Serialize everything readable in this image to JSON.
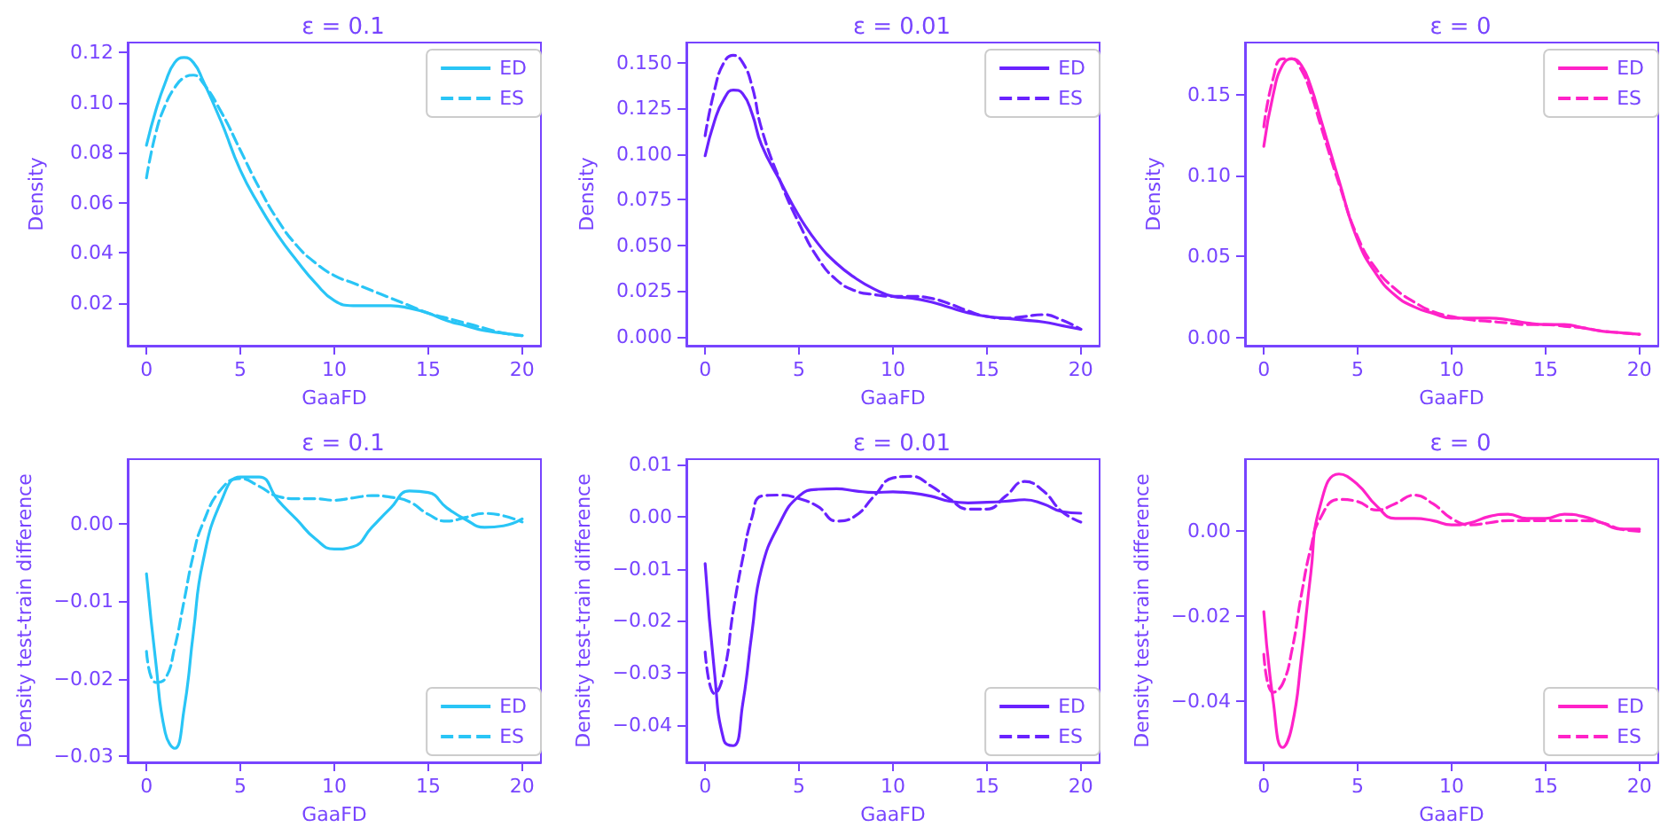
{
  "chart_data": [
    {
      "type": "line",
      "title": "ε = 0.1",
      "xlabel": "GaaFD",
      "ylabel": "Density",
      "x": [
        0,
        0.5,
        1,
        1.5,
        2,
        2.5,
        3,
        4,
        5,
        6,
        7,
        8,
        9,
        10,
        11,
        12,
        13,
        14,
        15,
        16,
        17,
        18,
        19,
        20
      ],
      "xlim": [
        -1,
        21
      ],
      "xticks": [
        0,
        5,
        10,
        15,
        20
      ],
      "ylim": [
        0.003,
        0.124
      ],
      "yticks": [
        {
          "value": 0.02,
          "label": "0.02"
        },
        {
          "value": 0.04,
          "label": "0.04"
        },
        {
          "value": 0.06,
          "label": "0.06"
        },
        {
          "value": 0.08,
          "label": "0.08"
        },
        {
          "value": 0.1,
          "label": "0.10"
        },
        {
          "value": 0.12,
          "label": "0.12"
        }
      ],
      "legend": "top right",
      "grid": false,
      "marker": "none",
      "series": [
        {
          "name": "ED",
          "color": "#29c5f6",
          "line_style": "solid",
          "values": [
            0.083,
            0.097,
            0.108,
            0.116,
            0.118,
            0.116,
            0.109,
            0.092,
            0.073,
            0.059,
            0.047,
            0.037,
            0.028,
            0.021,
            0.019,
            0.019,
            0.019,
            0.018,
            0.016,
            0.013,
            0.011,
            0.009,
            0.008,
            0.007
          ]
        },
        {
          "name": "ES",
          "color": "#29c5f6",
          "line_style": "dashed",
          "values": [
            0.07,
            0.088,
            0.099,
            0.106,
            0.11,
            0.111,
            0.108,
            0.096,
            0.081,
            0.066,
            0.053,
            0.043,
            0.036,
            0.031,
            0.028,
            0.025,
            0.022,
            0.019,
            0.016,
            0.014,
            0.012,
            0.01,
            0.008,
            0.007
          ]
        }
      ]
    },
    {
      "type": "line",
      "title": "ε = 0.01",
      "xlabel": "GaaFD",
      "ylabel": "Density",
      "x": [
        0,
        0.5,
        1,
        1.5,
        2,
        2.5,
        3,
        4,
        5,
        6,
        7,
        8,
        9,
        10,
        11,
        12,
        13,
        14,
        15,
        16,
        17,
        18,
        19,
        20
      ],
      "xlim": [
        -1,
        21
      ],
      "xticks": [
        0,
        5,
        10,
        15,
        20
      ],
      "ylim": [
        -0.005,
        0.161
      ],
      "yticks": [
        {
          "value": 0,
          "label": "0.000"
        },
        {
          "value": 0.025,
          "label": "0.025"
        },
        {
          "value": 0.05,
          "label": "0.050"
        },
        {
          "value": 0.075,
          "label": "0.075"
        },
        {
          "value": 0.1,
          "label": "0.100"
        },
        {
          "value": 0.125,
          "label": "0.125"
        },
        {
          "value": 0.15,
          "label": "0.150"
        }
      ],
      "legend": "top right",
      "grid": false,
      "marker": "none",
      "series": [
        {
          "name": "ED",
          "color": "#6a22ff",
          "line_style": "solid",
          "values": [
            0.099,
            0.118,
            0.13,
            0.135,
            0.133,
            0.122,
            0.105,
            0.085,
            0.066,
            0.051,
            0.04,
            0.032,
            0.026,
            0.022,
            0.021,
            0.019,
            0.016,
            0.013,
            0.011,
            0.01,
            0.009,
            0.008,
            0.006,
            0.004
          ]
        },
        {
          "name": "ES",
          "color": "#6a22ff",
          "line_style": "dashed",
          "values": [
            0.11,
            0.135,
            0.15,
            0.154,
            0.15,
            0.137,
            0.114,
            0.085,
            0.062,
            0.043,
            0.031,
            0.025,
            0.023,
            0.022,
            0.022,
            0.021,
            0.018,
            0.014,
            0.011,
            0.01,
            0.011,
            0.012,
            0.009,
            0.004
          ]
        }
      ]
    },
    {
      "type": "line",
      "title": "ε = 0",
      "xlabel": "GaaFD",
      "ylabel": "Density",
      "x": [
        0,
        0.5,
        1,
        1.5,
        2,
        2.5,
        3,
        4,
        5,
        6,
        7,
        8,
        9,
        10,
        11,
        12,
        13,
        14,
        15,
        16,
        17,
        18,
        19,
        20
      ],
      "xlim": [
        -1,
        21
      ],
      "xticks": [
        0,
        5,
        10,
        15,
        20
      ],
      "ylim": [
        -0.005,
        0.182
      ],
      "yticks": [
        {
          "value": 0,
          "label": "0.00"
        },
        {
          "value": 0.05,
          "label": "0.05"
        },
        {
          "value": 0.1,
          "label": "0.10"
        },
        {
          "value": 0.15,
          "label": "0.15"
        }
      ],
      "legend": "top right",
      "grid": false,
      "marker": "none",
      "series": [
        {
          "name": "ED",
          "color": "#ff22c8",
          "line_style": "solid",
          "values": [
            0.118,
            0.15,
            0.168,
            0.172,
            0.168,
            0.155,
            0.136,
            0.097,
            0.06,
            0.039,
            0.026,
            0.019,
            0.015,
            0.012,
            0.012,
            0.012,
            0.011,
            0.009,
            0.008,
            0.008,
            0.006,
            0.004,
            0.003,
            0.002
          ]
        },
        {
          "name": "ES",
          "color": "#ff22c8",
          "line_style": "dashed",
          "values": [
            0.13,
            0.16,
            0.172,
            0.172,
            0.165,
            0.151,
            0.132,
            0.095,
            0.062,
            0.042,
            0.03,
            0.022,
            0.016,
            0.013,
            0.011,
            0.01,
            0.009,
            0.008,
            0.008,
            0.007,
            0.006,
            0.004,
            0.003,
            0.002
          ]
        }
      ]
    },
    {
      "type": "line",
      "title": "ε = 0.1",
      "xlabel": "GaaFD",
      "ylabel": "Density test-train difference",
      "x": [
        0,
        0.5,
        1,
        1.5,
        2,
        2.5,
        3,
        4,
        5,
        6,
        7,
        8,
        9,
        10,
        11,
        12,
        13,
        14,
        15,
        16,
        17,
        18,
        19,
        20
      ],
      "xlim": [
        -1,
        21
      ],
      "xticks": [
        0,
        5,
        10,
        15,
        20
      ],
      "ylim": [
        -0.0308,
        0.0083
      ],
      "yticks": [
        {
          "value": -0.03,
          "label": "−0.03"
        },
        {
          "value": -0.02,
          "label": "−0.02"
        },
        {
          "value": -0.01,
          "label": "−0.01"
        },
        {
          "value": 0,
          "label": "0.00"
        }
      ],
      "legend": "bottom right",
      "grid": false,
      "marker": "none",
      "series": [
        {
          "name": "ED",
          "color": "#29c5f6",
          "line_style": "solid",
          "values": [
            -0.0065,
            -0.018,
            -0.027,
            -0.029,
            -0.024,
            -0.014,
            -0.005,
            0.003,
            0.006,
            0.006,
            0.003,
            0.0005,
            -0.002,
            -0.0033,
            -0.003,
            -0.0005,
            0.002,
            0.0042,
            0.004,
            0.002,
            0.0005,
            -0.0005,
            -0.0003,
            0.0006
          ]
        },
        {
          "name": "ES",
          "color": "#29c5f6",
          "line_style": "dashed",
          "values": [
            -0.0165,
            -0.0205,
            -0.02,
            -0.016,
            -0.01,
            -0.004,
            0.0,
            0.0045,
            0.0058,
            0.0048,
            0.0035,
            0.0032,
            0.0032,
            0.003,
            0.0033,
            0.0036,
            0.0034,
            0.0028,
            0.0012,
            0.0003,
            0.0008,
            0.0013,
            0.001,
            0.0002
          ]
        }
      ]
    },
    {
      "type": "line",
      "title": "ε = 0.01",
      "xlabel": "GaaFD",
      "ylabel": "Density test-train difference",
      "x": [
        0,
        0.5,
        1,
        1.5,
        2,
        2.5,
        3,
        4,
        5,
        6,
        7,
        8,
        9,
        10,
        11,
        12,
        13,
        14,
        15,
        16,
        17,
        18,
        19,
        20
      ],
      "xlim": [
        -1,
        21
      ],
      "xticks": [
        0,
        5,
        10,
        15,
        20
      ],
      "ylim": [
        -0.0472,
        0.0111
      ],
      "yticks": [
        {
          "value": -0.04,
          "label": "−0.04"
        },
        {
          "value": -0.03,
          "label": "−0.03"
        },
        {
          "value": -0.02,
          "label": "−0.02"
        },
        {
          "value": -0.01,
          "label": "−0.01"
        },
        {
          "value": 0,
          "label": "0.00"
        },
        {
          "value": 0.01,
          "label": "0.01"
        }
      ],
      "legend": "bottom right",
      "grid": false,
      "marker": "none",
      "series": [
        {
          "name": "ED",
          "color": "#6a22ff",
          "line_style": "solid",
          "values": [
            -0.009,
            -0.03,
            -0.043,
            -0.044,
            -0.036,
            -0.022,
            -0.01,
            -0.001,
            0.004,
            0.0053,
            0.0054,
            0.005,
            0.0047,
            0.0048,
            0.0046,
            0.004,
            0.003,
            0.0027,
            0.0028,
            0.003,
            0.0033,
            0.0025,
            0.001,
            0.0007
          ]
        },
        {
          "name": "ES",
          "color": "#6a22ff",
          "line_style": "dashed",
          "values": [
            -0.026,
            -0.034,
            -0.03,
            -0.018,
            -0.008,
            0.0,
            0.004,
            0.0042,
            0.0035,
            0.002,
            -0.0008,
            0.0002,
            0.004,
            0.0075,
            0.0078,
            0.006,
            0.0035,
            0.0015,
            0.0015,
            0.004,
            0.0068,
            0.005,
            0.001,
            -0.001
          ]
        }
      ]
    },
    {
      "type": "line",
      "title": "ε = 0",
      "xlabel": "GaaFD",
      "ylabel": "Density test-train difference",
      "x": [
        0,
        0.5,
        1,
        1.5,
        2,
        2.5,
        3,
        4,
        5,
        6,
        7,
        8,
        9,
        10,
        11,
        12,
        13,
        14,
        15,
        16,
        17,
        18,
        19,
        20
      ],
      "xlim": [
        -1,
        21
      ],
      "xticks": [
        0,
        5,
        10,
        15,
        20
      ],
      "ylim": [
        -0.0545,
        0.017
      ],
      "yticks": [
        {
          "value": -0.04,
          "label": "−0.04"
        },
        {
          "value": -0.02,
          "label": "−0.02"
        },
        {
          "value": 0,
          "label": "0.00"
        }
      ],
      "legend": "bottom right",
      "grid": false,
      "marker": "none",
      "series": [
        {
          "name": "ED",
          "color": "#ff22c8",
          "line_style": "solid",
          "values": [
            -0.019,
            -0.04,
            -0.051,
            -0.046,
            -0.03,
            -0.01,
            0.006,
            0.0135,
            0.011,
            0.006,
            0.003,
            0.003,
            0.0025,
            0.0015,
            0.002,
            0.0035,
            0.004,
            0.003,
            0.003,
            0.004,
            0.0035,
            0.002,
            0.0005,
            0.0005
          ]
        },
        {
          "name": "ES",
          "color": "#ff22c8",
          "line_style": "dashed",
          "values": [
            -0.029,
            -0.038,
            -0.036,
            -0.028,
            -0.015,
            -0.004,
            0.003,
            0.0075,
            0.007,
            0.005,
            0.0065,
            0.0085,
            0.0065,
            0.003,
            0.0015,
            0.002,
            0.0025,
            0.0025,
            0.0025,
            0.0025,
            0.0025,
            0.002,
            0.0005,
            0
          ]
        }
      ]
    }
  ]
}
